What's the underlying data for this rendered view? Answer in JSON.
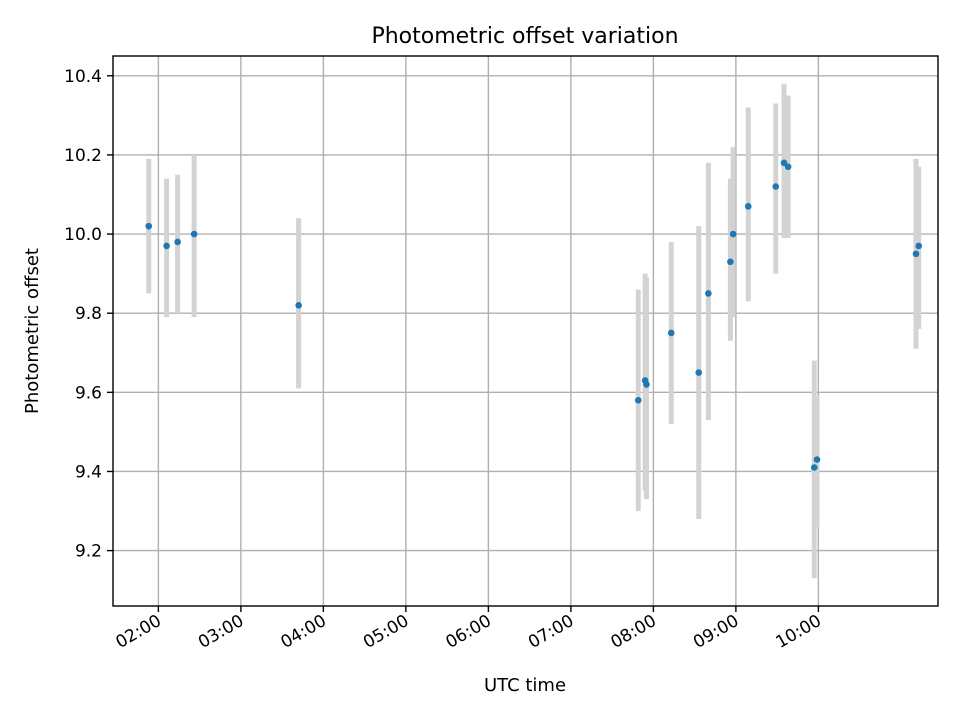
{
  "chart_data": {
    "type": "scatter",
    "title": "Photometric offset variation",
    "xlabel": "UTC time",
    "ylabel": "Photometric offset",
    "x_tick_labels": [
      "02:00",
      "03:00",
      "04:00",
      "05:00",
      "06:00",
      "07:00",
      "08:00",
      "09:00",
      "10:00"
    ],
    "y_tick_labels": [
      "9.2",
      "9.4",
      "9.6",
      "9.8",
      "10.0",
      "10.2",
      "10.4"
    ],
    "xlim": [
      "01:27",
      "11:27"
    ],
    "ylim": [
      9.06,
      10.45
    ],
    "grid": true,
    "colors": {
      "points": "#1f77b4",
      "error_bars": "#d3d3d3"
    },
    "points": [
      {
        "x": "01:53",
        "y": 10.02,
        "yerr_low": 9.85,
        "yerr_high": 10.19
      },
      {
        "x": "02:06",
        "y": 9.97,
        "yerr_low": 9.79,
        "yerr_high": 10.14
      },
      {
        "x": "02:14",
        "y": 9.98,
        "yerr_low": 9.8,
        "yerr_high": 10.15
      },
      {
        "x": "02:26",
        "y": 10.0,
        "yerr_low": 9.79,
        "yerr_high": 10.2
      },
      {
        "x": "03:42",
        "y": 9.82,
        "yerr_low": 9.61,
        "yerr_high": 10.04
      },
      {
        "x": "07:49",
        "y": 9.58,
        "yerr_low": 9.3,
        "yerr_high": 9.86
      },
      {
        "x": "07:54",
        "y": 9.63,
        "yerr_low": 9.35,
        "yerr_high": 9.9
      },
      {
        "x": "07:55",
        "y": 9.62,
        "yerr_low": 9.33,
        "yerr_high": 9.89
      },
      {
        "x": "08:13",
        "y": 9.75,
        "yerr_low": 9.52,
        "yerr_high": 9.98
      },
      {
        "x": "08:33",
        "y": 9.65,
        "yerr_low": 9.28,
        "yerr_high": 10.02
      },
      {
        "x": "08:40",
        "y": 9.85,
        "yerr_low": 9.53,
        "yerr_high": 10.18
      },
      {
        "x": "08:56",
        "y": 9.93,
        "yerr_low": 9.73,
        "yerr_high": 10.14
      },
      {
        "x": "08:58",
        "y": 10.0,
        "yerr_low": 9.79,
        "yerr_high": 10.22
      },
      {
        "x": "09:09",
        "y": 10.07,
        "yerr_low": 9.83,
        "yerr_high": 10.32
      },
      {
        "x": "09:29",
        "y": 10.12,
        "yerr_low": 9.9,
        "yerr_high": 10.33
      },
      {
        "x": "09:35",
        "y": 10.18,
        "yerr_low": 9.99,
        "yerr_high": 10.38
      },
      {
        "x": "09:38",
        "y": 10.17,
        "yerr_low": 9.99,
        "yerr_high": 10.35
      },
      {
        "x": "09:57",
        "y": 9.41,
        "yerr_low": 9.13,
        "yerr_high": 9.68
      },
      {
        "x": "09:59",
        "y": 9.43,
        "yerr_low": 9.26,
        "yerr_high": 9.59
      },
      {
        "x": "11:11",
        "y": 9.95,
        "yerr_low": 9.71,
        "yerr_high": 10.19
      },
      {
        "x": "11:13",
        "y": 9.97,
        "yerr_low": 9.76,
        "yerr_high": 10.17
      }
    ]
  }
}
